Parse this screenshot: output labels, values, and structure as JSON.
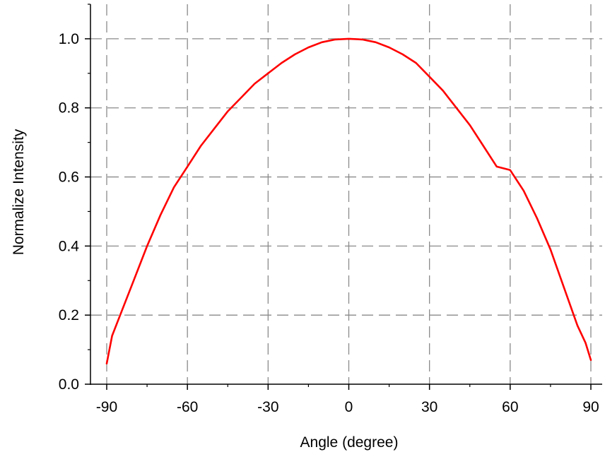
{
  "chart_data": {
    "type": "line",
    "title": "",
    "xlabel": "Angle (degree)",
    "ylabel": "Normalize Intensity",
    "xlim": [
      -90,
      90
    ],
    "ylim": [
      0,
      1.1
    ],
    "x_ticks": [
      -90,
      -60,
      -30,
      0,
      30,
      60,
      90
    ],
    "x_tick_labels": [
      "-90",
      "-60",
      "-30",
      "0",
      "30",
      "60",
      "90"
    ],
    "y_ticks": [
      0,
      0.2,
      0.4,
      0.6,
      0.8,
      1.0
    ],
    "y_tick_labels": [
      "0.0",
      "0.2",
      "0.4",
      "0.6",
      "0.8",
      "1.0"
    ],
    "grid": true,
    "grid_style": "dashed",
    "series": [
      {
        "color": "#ff0000",
        "x": [
          -90,
          -88,
          -85,
          -80,
          -75,
          -70,
          -65,
          -60,
          -55,
          -50,
          -45,
          -40,
          -35,
          -30,
          -25,
          -20,
          -15,
          -10,
          -5,
          0,
          5,
          10,
          15,
          20,
          25,
          30,
          35,
          40,
          45,
          50,
          55,
          60,
          65,
          70,
          75,
          80,
          85,
          88,
          90
        ],
        "y": [
          0.06,
          0.14,
          0.2,
          0.3,
          0.4,
          0.49,
          0.57,
          0.63,
          0.69,
          0.74,
          0.79,
          0.83,
          0.87,
          0.9,
          0.93,
          0.955,
          0.975,
          0.99,
          0.998,
          1.0,
          0.998,
          0.99,
          0.975,
          0.955,
          0.93,
          0.89,
          0.85,
          0.8,
          0.75,
          0.69,
          0.63,
          0.62,
          0.56,
          0.48,
          0.39,
          0.28,
          0.17,
          0.12,
          0.07
        ]
      }
    ]
  }
}
